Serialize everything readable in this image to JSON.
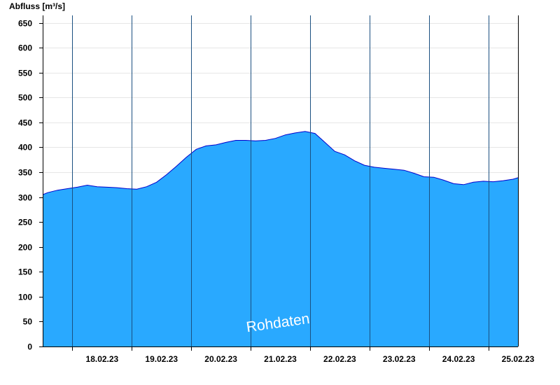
{
  "chart_data": {
    "type": "area",
    "ylabel": "Abfluss [m³/s]",
    "xlabel": "",
    "title": "",
    "ylim": [
      0,
      665
    ],
    "yticks": [
      0,
      50,
      100,
      150,
      200,
      250,
      300,
      350,
      400,
      450,
      500,
      550,
      600,
      650
    ],
    "xlim": [
      "17.02.23 12:00",
      "25.02.23 12:00"
    ],
    "day_boundaries": [
      "18.02.23 00:00",
      "19.02.23 00:00",
      "20.02.23 00:00",
      "21.02.23 00:00",
      "22.02.23 00:00",
      "23.02.23 00:00",
      "24.02.23 00:00",
      "25.02.23 00:00"
    ],
    "xtick_labels": [
      "18.02.23",
      "19.02.23",
      "20.02.23",
      "21.02.23",
      "22.02.23",
      "23.02.23",
      "24.02.23",
      "25.02.23"
    ],
    "grid": true,
    "watermark": "Rohdaten",
    "colors": {
      "fill": "#29a9ff",
      "line": "#0000cc",
      "grid": "#e6e6e6",
      "day_line": "#1a4f80"
    },
    "series": [
      {
        "x": [
          "17.02.23 12:00",
          "17.02.23 14:00",
          "17.02.23 18:00",
          "17.02.23 22:00",
          "18.02.23 02:00",
          "18.02.23 06:00",
          "18.02.23 10:00",
          "18.02.23 14:00",
          "18.02.23 18:00",
          "18.02.23 22:00",
          "19.02.23 02:00",
          "19.02.23 06:00",
          "19.02.23 10:00",
          "19.02.23 14:00",
          "19.02.23 18:00",
          "19.02.23 22:00",
          "20.02.23 02:00",
          "20.02.23 06:00",
          "20.02.23 10:00",
          "20.02.23 14:00",
          "20.02.23 18:00",
          "20.02.23 22:00",
          "21.02.23 02:00",
          "21.02.23 06:00",
          "21.02.23 10:00",
          "21.02.23 14:00",
          "21.02.23 18:00",
          "21.02.23 22:00",
          "22.02.23 02:00",
          "22.02.23 06:00",
          "22.02.23 10:00",
          "22.02.23 14:00",
          "22.02.23 18:00",
          "22.02.23 22:00",
          "23.02.23 02:00",
          "23.02.23 06:00",
          "23.02.23 10:00",
          "23.02.23 14:00",
          "23.02.23 18:00",
          "23.02.23 22:00",
          "24.02.23 02:00",
          "24.02.23 06:00",
          "24.02.23 10:00",
          "24.02.23 14:00",
          "24.02.23 18:00",
          "24.02.23 22:00",
          "25.02.23 02:00",
          "25.02.23 06:00",
          "25.02.23 10:00",
          "25.02.23 12:00"
        ],
        "values": [
          305,
          309,
          314,
          317,
          320,
          324,
          321,
          320,
          319,
          317,
          316,
          321,
          330,
          345,
          362,
          380,
          396,
          403,
          405,
          410,
          414,
          414,
          413,
          414,
          418,
          425,
          429,
          432,
          428,
          410,
          392,
          385,
          373,
          364,
          360,
          358,
          356,
          354,
          348,
          341,
          340,
          334,
          327,
          325,
          330,
          332,
          331,
          333,
          336,
          339
        ]
      }
    ]
  }
}
